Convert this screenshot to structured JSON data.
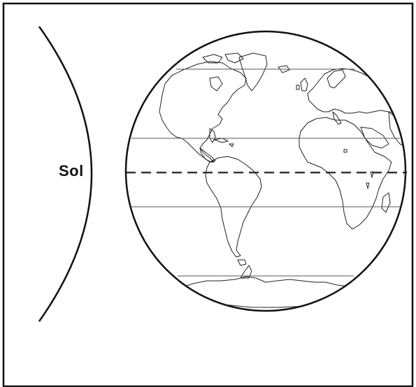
{
  "labels": {
    "sun": "Sol"
  },
  "colors": {
    "line": "#111111",
    "background": "#ffffff"
  },
  "elements": {
    "sun": "sun-limb-arc",
    "earth": "earth-globe",
    "equator": "equator-dashed-line",
    "parallels": [
      "arctic-circle-line",
      "tropic-of-cancer-line",
      "tropic-of-capricorn-line",
      "antarctic-circle-line"
    ],
    "map": "world-map-outline"
  }
}
